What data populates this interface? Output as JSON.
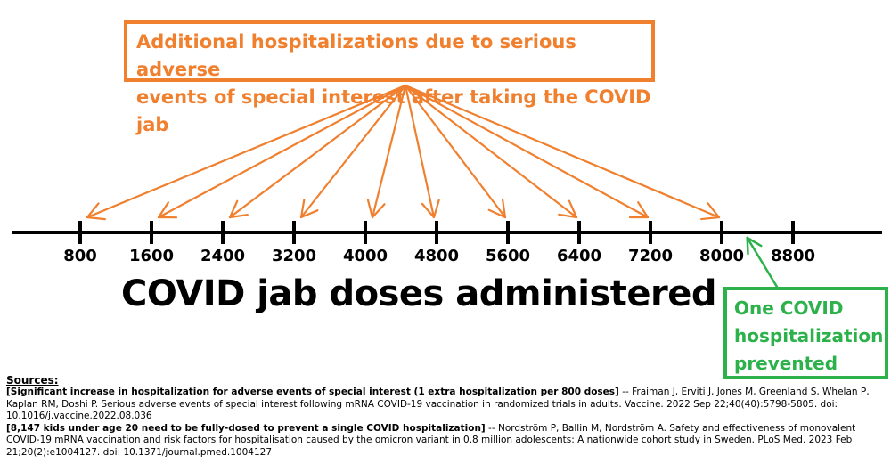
{
  "header_box": {
    "text": "Additional hospitalizations due to serious adverse\nevents of special interest after taking the COVID jab"
  },
  "chart_data": {
    "type": "diagram",
    "axis_title": "COVID jab doses administered",
    "ticks": [
      "800",
      "1600",
      "2400",
      "3200",
      "4000",
      "4800",
      "5600",
      "6400",
      "7200",
      "8000",
      "8800"
    ],
    "tick_values": [
      800,
      1600,
      2400,
      3200,
      4000,
      4800,
      5600,
      6400,
      7200,
      8000,
      8800
    ],
    "arrow_targets": [
      800,
      1600,
      2400,
      3200,
      4000,
      4800,
      5600,
      6400,
      7200,
      8000
    ],
    "prevented_target": 8147,
    "colors": {
      "orange": "#f07f2e",
      "green": "#2cb14b",
      "axis": "#000000"
    }
  },
  "prevented_box": {
    "text": "One COVID\nhospitalization\nprevented"
  },
  "sources": {
    "heading": "Sources:",
    "items": [
      {
        "bold": "[Significant increase in hospitalization for adverse events of special interest (1 extra hospitalization per 800 doses]",
        "text": " -- Fraiman J, Erviti J, Jones M, Greenland S, Whelan P, Kaplan RM, Doshi P. Serious adverse events of special interest following mRNA COVID-19 vaccination in randomized trials in adults. Vaccine. 2022 Sep 22;40(40):5798-5805. doi: 10.1016/j.vaccine.2022.08.036"
      },
      {
        "bold": "[8,147 kids under age 20 need to be fully-dosed to prevent a single COVID hospitalization]",
        "text": " -- Nordström P, Ballin M, Nordström A. Safety and effectiveness of monovalent COVID-19 mRNA vaccination and risk factors for hospitalisation caused by the omicron variant in 0.8 million adolescents: A nationwide cohort study in Sweden. PLoS Med. 2023 Feb 21;20(2):e1004127. doi: 10.1371/journal.pmed.1004127"
      }
    ]
  }
}
